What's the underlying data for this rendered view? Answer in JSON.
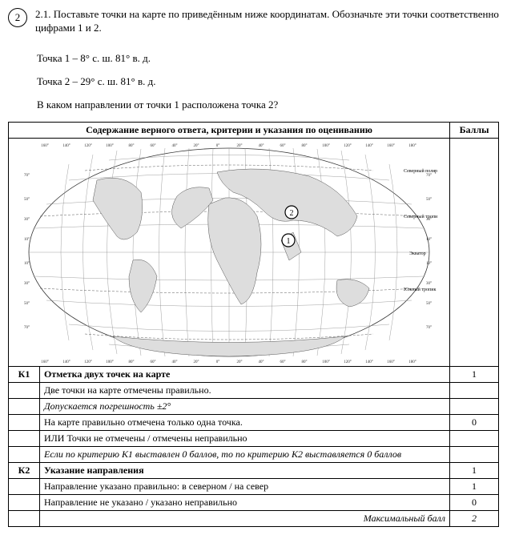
{
  "question_number": "2",
  "task": {
    "line1": "2.1. Поставьте точки на карте по приведённым ниже координатам. Обозначьте эти точки соответственно цифрами 1 и 2.",
    "point1": "Точка 1 – 8° с. ш. 81° в. д.",
    "point2": "Точка 2 – 29° с. ш. 81° в. д.",
    "question": "В каком направлении от точки 1 расположена точка 2?"
  },
  "table": {
    "header_main": "Содержание верного ответа, критерии и указания по оцениванию",
    "header_score": "Баллы",
    "map": {
      "top_lons": [
        "160°",
        "140°",
        "120°",
        "100°",
        "80°",
        "60°",
        "40°",
        "20°",
        "0°",
        "20°",
        "40°",
        "60°",
        "80°",
        "100°",
        "120°",
        "140°",
        "160°",
        "180°"
      ],
      "bot_lons": [
        "160°",
        "140°",
        "120°",
        "100°",
        "80°",
        "60°",
        "40°",
        "20°",
        "0°",
        "20°",
        "40°",
        "60°",
        "80°",
        "100°",
        "120°",
        "140°",
        "160°",
        "180°"
      ],
      "left_lats": [
        "70°",
        "50°",
        "30°",
        "10°",
        "10°",
        "30°",
        "50°",
        "70°"
      ],
      "right_lats": [
        "70°",
        "50°",
        "30°",
        "10°",
        "10°",
        "30°",
        "50°",
        "70°"
      ],
      "arctic_label": "Северный полярный круг",
      "tropic_n_label": "Северный тропик",
      "equator_label": "Экватор",
      "tropic_s_label": "Южный тропик",
      "point1_label": "1",
      "point2_label": "2"
    },
    "rows": [
      {
        "k": "К1",
        "text": "Отметка двух точек на карте",
        "score": "1",
        "bold": true
      },
      {
        "k": "",
        "text": "Две точки на карте отмечены правильно.",
        "score": ""
      },
      {
        "k": "",
        "text": "Допускается погрешность ±2°",
        "score": "",
        "italic": true,
        "no_top_border": true
      },
      {
        "k": "",
        "text": "На карте правильно отмечена только одна точка.",
        "score": "0"
      },
      {
        "k": "",
        "text": "ИЛИ Точки не отмечены / отмечены неправильно",
        "score": "",
        "no_top_border": true
      },
      {
        "k": "",
        "text": "Если по критерию К1 выставлен 0 баллов, то по критерию К2 выставляется 0 баллов",
        "score": "",
        "italic": true
      },
      {
        "k": "К2",
        "text": "Указание направления",
        "score": "1",
        "bold": true
      },
      {
        "k": "",
        "text": "Направление указано правильно: в северном / на север",
        "score": "1"
      },
      {
        "k": "",
        "text": "Направление не указано / указано неправильно",
        "score": "0"
      },
      {
        "k": "",
        "text": "Максимальный балл",
        "score": "2",
        "italic": true,
        "right": true
      }
    ]
  }
}
